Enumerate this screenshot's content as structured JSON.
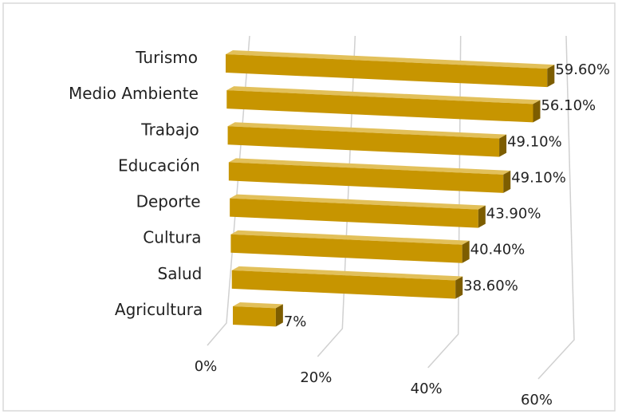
{
  "chart_data": {
    "type": "bar",
    "orientation": "horizontal",
    "style": "3d",
    "categories": [
      "Turismo",
      "Medio Ambiente",
      "Trabajo",
      "Educación",
      "Deporte",
      "Cultura",
      "Salud",
      "Agricultura"
    ],
    "values": [
      59.6,
      56.1,
      49.1,
      49.1,
      43.9,
      40.4,
      38.6,
      7
    ],
    "value_labels": [
      "59.60%",
      "56.10%",
      "49.10%",
      "49.10%",
      "43.90%",
      "40.40%",
      "38.60%",
      "7%"
    ],
    "x_ticks": [
      "0%",
      "20%",
      "40%",
      "60%"
    ],
    "xlim": [
      0,
      60
    ],
    "title": "",
    "xlabel": "",
    "ylabel": "",
    "legend": "none",
    "grid": true,
    "colors": {
      "bar_front": "#c79500",
      "bar_top": "#e2c05a",
      "bar_side": "#7d5d00",
      "grid": "#d0d0d0",
      "text": "#222222"
    }
  }
}
